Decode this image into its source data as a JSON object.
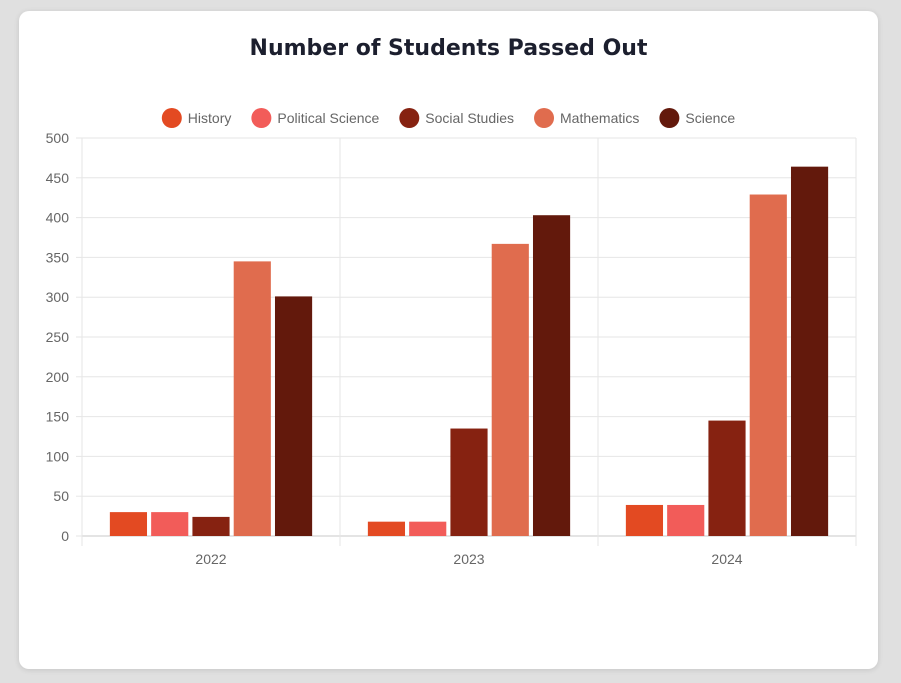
{
  "chart_data": {
    "type": "bar",
    "title": "Number of Students Passed Out",
    "categories": [
      "2022",
      "2023",
      "2024"
    ],
    "ylim": [
      0,
      500
    ],
    "yticks": [
      0,
      50,
      100,
      150,
      200,
      250,
      300,
      350,
      400,
      450,
      500
    ],
    "grid": true,
    "legend_position": "top",
    "series": [
      {
        "name": "History",
        "color": "#e34a22",
        "values": [
          30,
          18,
          39
        ]
      },
      {
        "name": "Political Science",
        "color": "#f25c59",
        "values": [
          30,
          18,
          39
        ]
      },
      {
        "name": "Social Studies",
        "color": "#862211",
        "values": [
          24,
          135,
          145
        ]
      },
      {
        "name": "Mathematics",
        "color": "#e06c4e",
        "values": [
          345,
          367,
          429
        ]
      },
      {
        "name": "Science",
        "color": "#63190c",
        "values": [
          301,
          403,
          464
        ]
      }
    ]
  }
}
